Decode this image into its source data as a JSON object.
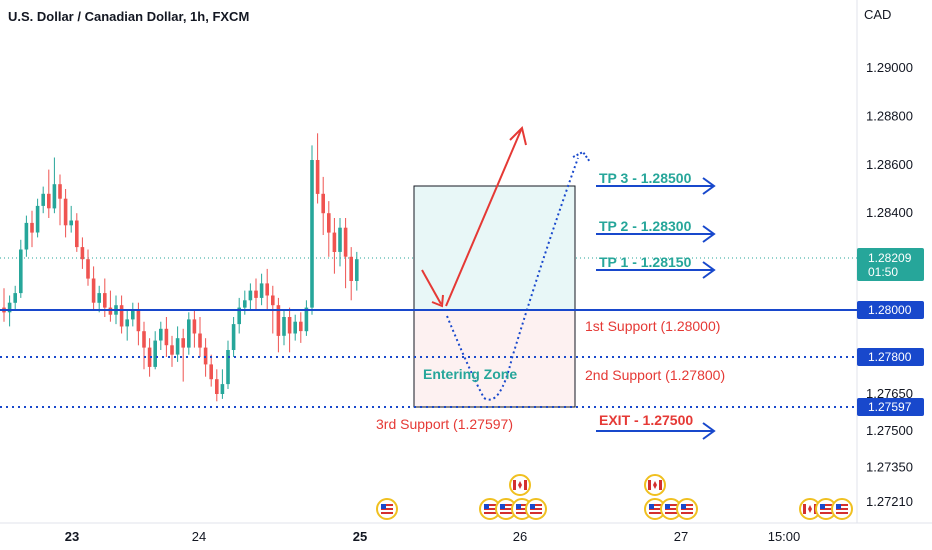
{
  "header": {
    "title": "U.S. Dollar / Canadian Dollar, 1h, FXCM",
    "currency": "CAD"
  },
  "chart_data": {
    "type": "candlestick",
    "title": "U.S. Dollar / Canadian Dollar, 1h, FXCM",
    "y_axis_ticks": [
      1.29,
      1.288,
      1.286,
      1.284,
      1.2765,
      1.275,
      1.2735,
      1.2721
    ],
    "y_axis_tick_labels": [
      "1.29000",
      "1.28800",
      "1.28600",
      "1.28400",
      "1.27650",
      "1.27500",
      "1.27350",
      "1.27210"
    ],
    "x_axis_tick_labels": [
      {
        "label": "23",
        "bold": true
      },
      {
        "label": "24",
        "bold": false
      },
      {
        "label": "25",
        "bold": true
      },
      {
        "label": "26",
        "bold": false
      },
      {
        "label": "27",
        "bold": false
      },
      {
        "label": "15:00",
        "bold": false
      }
    ],
    "current_price": {
      "value": "1.28209",
      "countdown": "01:50",
      "color": "#26a69a"
    },
    "price_tags": [
      {
        "label": "1.28000",
        "value": 1.28
      },
      {
        "label": "1.27800",
        "value": 1.278
      },
      {
        "label": "1.27597",
        "value": 1.27597
      }
    ],
    "levels": [
      {
        "name": "1st Support (1.28000)",
        "value": 1.28,
        "style": "solid",
        "color": "#1848cc"
      },
      {
        "name": "2nd Support (1.27800)",
        "value": 1.278,
        "style": "dotted",
        "color": "#1848cc"
      },
      {
        "name": "3rd Support (1.27597)",
        "value": 1.27597,
        "style": "dotted",
        "color": "#1848cc"
      }
    ],
    "targets": [
      {
        "label": "TP 3 - 1.28500",
        "value": 1.285,
        "color": "#26a69a"
      },
      {
        "label": "TP 2 - 1.28300",
        "value": 1.283,
        "color": "#26a69a"
      },
      {
        "label": "TP 1 - 1.28150",
        "value": 1.2815,
        "color": "#26a69a"
      },
      {
        "label": "EXIT - 1.27500",
        "value": 1.275,
        "color": "#e53935"
      }
    ],
    "zone_label": "Entering Zone",
    "colors": {
      "up": "#26a69a",
      "down": "#ef5350",
      "level": "#1848cc",
      "support_text": "#e53935",
      "arrow": "#e53935"
    },
    "candles": [
      [
        1.2801,
        1.2799,
        1.2809,
        1.2795
      ],
      [
        1.2799,
        1.2803,
        1.2806,
        1.2793
      ],
      [
        1.2803,
        1.2807,
        1.281,
        1.28
      ],
      [
        1.2807,
        1.2825,
        1.2829,
        1.2805
      ],
      [
        1.2825,
        1.2836,
        1.2839,
        1.2822
      ],
      [
        1.2836,
        1.2832,
        1.2841,
        1.2826
      ],
      [
        1.2832,
        1.2843,
        1.2846,
        1.283
      ],
      [
        1.2843,
        1.2848,
        1.2851,
        1.284
      ],
      [
        1.2848,
        1.2842,
        1.2858,
        1.2838
      ],
      [
        1.2842,
        1.2852,
        1.2863,
        1.284
      ],
      [
        1.2852,
        1.2846,
        1.2856,
        1.2835
      ],
      [
        1.2846,
        1.2835,
        1.285,
        1.283
      ],
      [
        1.2835,
        1.2837,
        1.2843,
        1.2832
      ],
      [
        1.2837,
        1.2826,
        1.284,
        1.2824
      ],
      [
        1.2826,
        1.2821,
        1.283,
        1.2817
      ],
      [
        1.2821,
        1.2813,
        1.2825,
        1.281
      ],
      [
        1.2813,
        1.2803,
        1.2818,
        1.28
      ],
      [
        1.2803,
        1.2807,
        1.281,
        1.2799
      ],
      [
        1.2807,
        1.2801,
        1.2813,
        1.2797
      ],
      [
        1.2801,
        1.2798,
        1.2808,
        1.2795
      ],
      [
        1.2798,
        1.2802,
        1.2806,
        1.2794
      ],
      [
        1.2802,
        1.2793,
        1.2806,
        1.279
      ],
      [
        1.2793,
        1.2796,
        1.28,
        1.2787
      ],
      [
        1.2796,
        1.28,
        1.2803,
        1.2793
      ],
      [
        1.28,
        1.2791,
        1.2803,
        1.2785
      ],
      [
        1.2791,
        1.2784,
        1.2795,
        1.2775
      ],
      [
        1.2784,
        1.2776,
        1.2788,
        1.2772
      ],
      [
        1.2776,
        1.2787,
        1.2791,
        1.2775
      ],
      [
        1.2787,
        1.2792,
        1.2795,
        1.2783
      ],
      [
        1.2792,
        1.2785,
        1.2797,
        1.278
      ],
      [
        1.2785,
        1.2781,
        1.2789,
        1.2776
      ],
      [
        1.2781,
        1.2788,
        1.2793,
        1.2778
      ],
      [
        1.2788,
        1.2784,
        1.2792,
        1.277
      ],
      [
        1.2784,
        1.2796,
        1.2799,
        1.2781
      ],
      [
        1.2796,
        1.279,
        1.28,
        1.2784
      ],
      [
        1.279,
        1.2784,
        1.2797,
        1.278
      ],
      [
        1.2784,
        1.2777,
        1.2788,
        1.2772
      ],
      [
        1.2777,
        1.2771,
        1.2781,
        1.2768
      ],
      [
        1.2771,
        1.2765,
        1.2775,
        1.2762
      ],
      [
        1.2765,
        1.2769,
        1.2775,
        1.2763
      ],
      [
        1.2769,
        1.2783,
        1.2787,
        1.2767
      ],
      [
        1.2783,
        1.2794,
        1.2797,
        1.278
      ],
      [
        1.2794,
        1.2801,
        1.2805,
        1.279
      ],
      [
        1.2801,
        1.2804,
        1.2808,
        1.2798
      ],
      [
        1.2804,
        1.2808,
        1.2811,
        1.28
      ],
      [
        1.2808,
        1.2805,
        1.2813,
        1.28
      ],
      [
        1.2805,
        1.2811,
        1.2815,
        1.2802
      ],
      [
        1.2811,
        1.2806,
        1.2817,
        1.28
      ],
      [
        1.2806,
        1.2802,
        1.281,
        1.279
      ],
      [
        1.2802,
        1.2789,
        1.2805,
        1.2782
      ],
      [
        1.2789,
        1.2797,
        1.28,
        1.2785
      ],
      [
        1.2797,
        1.279,
        1.2801,
        1.2782
      ],
      [
        1.279,
        1.2795,
        1.2798,
        1.2787
      ],
      [
        1.2795,
        1.2791,
        1.2799,
        1.2786
      ],
      [
        1.2791,
        1.2801,
        1.2804,
        1.2789
      ],
      [
        1.2801,
        1.2862,
        1.2868,
        1.2798
      ],
      [
        1.2862,
        1.2848,
        1.2873,
        1.2844
      ],
      [
        1.2848,
        1.284,
        1.2855,
        1.2831
      ],
      [
        1.284,
        1.2832,
        1.2845,
        1.2822
      ],
      [
        1.2832,
        1.2824,
        1.2838,
        1.2815
      ],
      [
        1.2824,
        1.2834,
        1.2838,
        1.2818
      ],
      [
        1.2834,
        1.2822,
        1.2838,
        1.2809
      ],
      [
        1.2822,
        1.2812,
        1.2826,
        1.2804
      ],
      [
        1.2812,
        1.2821,
        1.2824,
        1.2808
      ]
    ]
  },
  "events": {
    "usd_flag_label": "US flag",
    "cad_flag_label": "Canada flag"
  }
}
